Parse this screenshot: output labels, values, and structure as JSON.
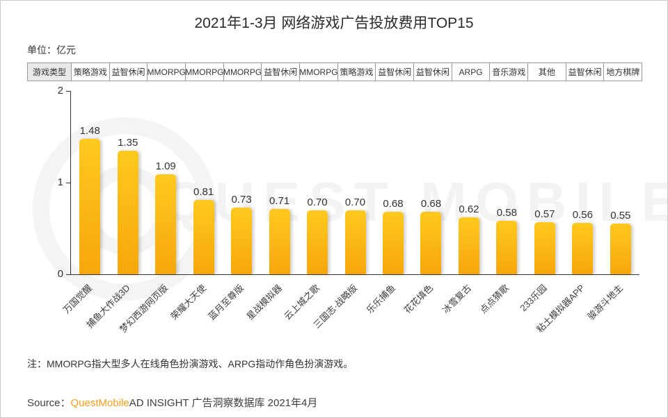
{
  "header": {
    "title": "2021年1-3月 网络游戏广告投放费用TOP15",
    "unit_label": "单位：亿元"
  },
  "type_row": {
    "label": "游戏类型",
    "types": [
      "策略游戏",
      "益智休闲",
      "MMORPG",
      "MMORPG",
      "MMORPG",
      "益智休闲",
      "MMORPG",
      "策略游戏",
      "益智休闲",
      "益智休闲",
      "ARPG",
      "音乐游戏",
      "其他",
      "益智休闲",
      "地方棋牌"
    ]
  },
  "chart_data": {
    "type": "bar",
    "title": "2021年1-3月 网络游戏广告投放费用TOP15",
    "xlabel": "",
    "ylabel": "亿元",
    "ylim": [
      0,
      2
    ],
    "yticks": [
      0,
      1,
      2
    ],
    "grid": false,
    "legend": "none",
    "categories": [
      "万国觉醒",
      "捕鱼大作战3D",
      "梦幻西游网页版",
      "荣耀大天使",
      "蓝月至尊版",
      "星战模拟器",
      "云上城之歌",
      "三国志·战略版",
      "乐乐捕鱼",
      "花花填色",
      "冰雪复古",
      "点点猜歌",
      "233乐园",
      "粘土模拟器APP",
      "骏游斗地主"
    ],
    "values": [
      1.48,
      1.35,
      1.09,
      0.81,
      0.73,
      0.71,
      0.7,
      0.7,
      0.68,
      0.68,
      0.62,
      0.58,
      0.57,
      0.56,
      0.55
    ],
    "game_types": [
      "策略游戏",
      "益智休闲",
      "MMORPG",
      "MMORPG",
      "MMORPG",
      "益智休闲",
      "MMORPG",
      "策略游戏",
      "益智休闲",
      "益智休闲",
      "ARPG",
      "音乐游戏",
      "其他",
      "益智休闲",
      "地方棋牌"
    ]
  },
  "colors": {
    "bar_top": "#ffc91f",
    "bar_bottom": "#f7a70a",
    "brand_orange": "#f7a01d",
    "axis": "#333333"
  },
  "watermark": {
    "text": "QUEST MOBILE"
  },
  "footer": {
    "note": "注：MMORPG指大型多人在线角色扮演游戏、ARPG指动作角色扮演游戏。",
    "source_prefix": "Source：",
    "source_brand": "QuestMobile",
    "source_rest": "AD INSIGHT 广告洞察数据库 2021年4月"
  }
}
